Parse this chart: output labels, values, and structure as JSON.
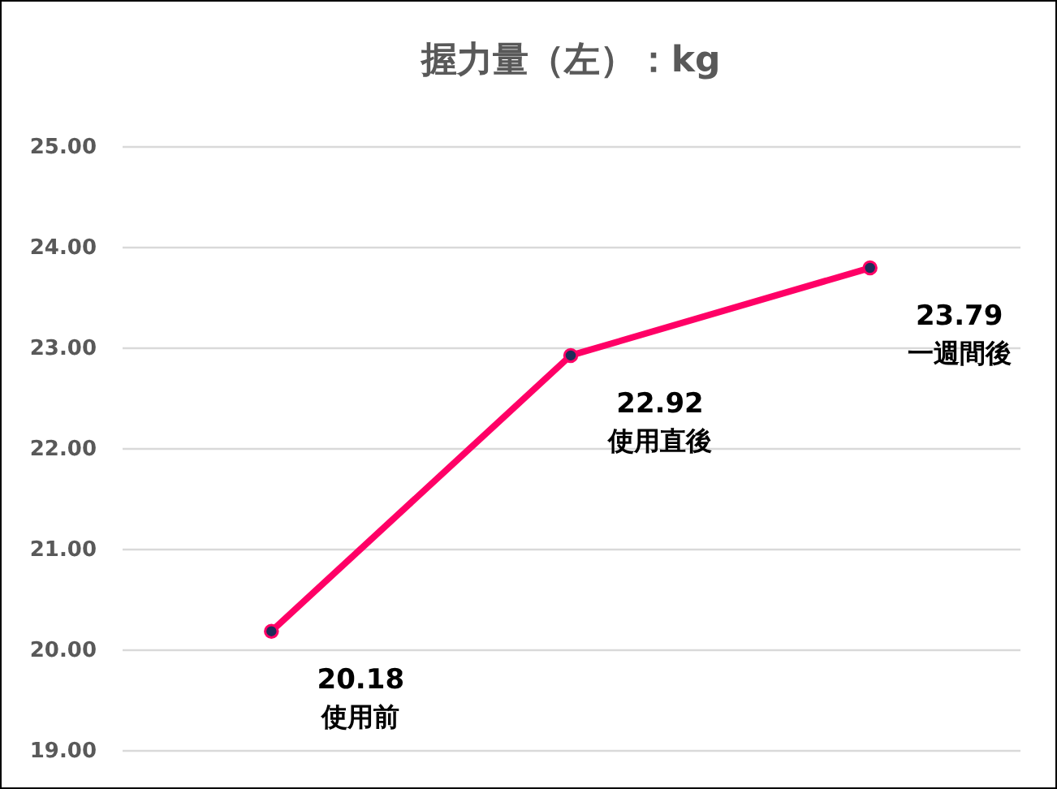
{
  "chart_data": {
    "type": "line",
    "title": "握力量（左）：kg",
    "categories": [
      "使用前",
      "使用直後",
      "一週間後"
    ],
    "series": [
      {
        "color": "#ff0066",
        "values": [
          20.18,
          22.92,
          23.79
        ]
      }
    ],
    "ylim": [
      19,
      25
    ],
    "yticks": [
      {
        "value": 19,
        "label": "19.00"
      },
      {
        "value": 20,
        "label": "20.00"
      },
      {
        "value": 21,
        "label": "21.00"
      },
      {
        "value": 22,
        "label": "22.00"
      },
      {
        "value": 23,
        "label": "23.00"
      },
      {
        "value": 24,
        "label": "24.00"
      },
      {
        "value": 25,
        "label": "25.00"
      }
    ],
    "grid": "y",
    "marker": "circle",
    "data_labels": true,
    "tick_labels": "y"
  }
}
